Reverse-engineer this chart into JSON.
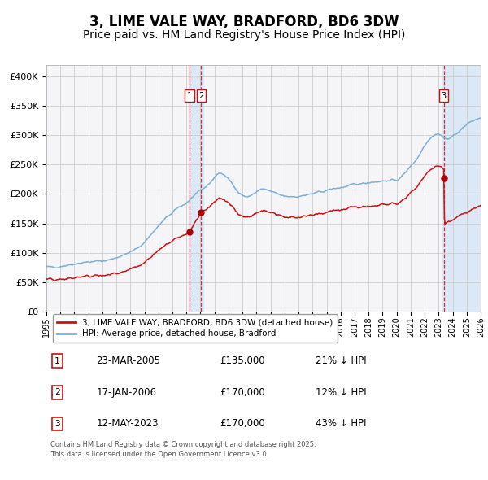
{
  "title": "3, LIME VALE WAY, BRADFORD, BD6 3DW",
  "subtitle": "Price paid vs. HM Land Registry's House Price Index (HPI)",
  "title_fontsize": 12,
  "subtitle_fontsize": 10,
  "xlim_start": 1995.0,
  "xlim_end": 2026.0,
  "ylim_min": 0,
  "ylim_max": 420000,
  "hpi_color": "#7bafd4",
  "price_color": "#cc1111",
  "sale_marker_color": "#aa0000",
  "vline_color": "#cc1111",
  "vband_color": "#dce8f5",
  "grid_color": "#cccccc",
  "bg_color": "#f5f5f8",
  "legend_entries": [
    "3, LIME VALE WAY, BRADFORD, BD6 3DW (detached house)",
    "HPI: Average price, detached house, Bradford"
  ],
  "sales": [
    {
      "num": 1,
      "date_dec": 2005.22,
      "price": 135000
    },
    {
      "num": 2,
      "date_dec": 2006.05,
      "price": 170000
    },
    {
      "num": 3,
      "date_dec": 2023.37,
      "price": 170000
    }
  ],
  "table_rows": [
    {
      "num": 1,
      "date": "23-MAR-2005",
      "price": "£135,000",
      "note": "21% ↓ HPI"
    },
    {
      "num": 2,
      "date": "17-JAN-2006",
      "price": "£170,000",
      "note": "12% ↓ HPI"
    },
    {
      "num": 3,
      "date": "12-MAY-2023",
      "price": "£170,000",
      "note": "43% ↓ HPI"
    }
  ],
  "footnote": "Contains HM Land Registry data © Crown copyright and database right 2025.\nThis data is licensed under the Open Government Licence v3.0.",
  "ytick_labels": [
    "£0",
    "£50K",
    "£100K",
    "£150K",
    "£200K",
    "£250K",
    "£300K",
    "£350K",
    "£400K"
  ],
  "ytick_values": [
    0,
    50000,
    100000,
    150000,
    200000,
    250000,
    300000,
    350000,
    400000
  ],
  "xtick_years": [
    1995,
    1996,
    1997,
    1998,
    1999,
    2000,
    2001,
    2002,
    2003,
    2004,
    2005,
    2006,
    2007,
    2008,
    2009,
    2010,
    2011,
    2012,
    2013,
    2014,
    2015,
    2016,
    2017,
    2018,
    2019,
    2020,
    2021,
    2022,
    2023,
    2024,
    2025,
    2026
  ]
}
